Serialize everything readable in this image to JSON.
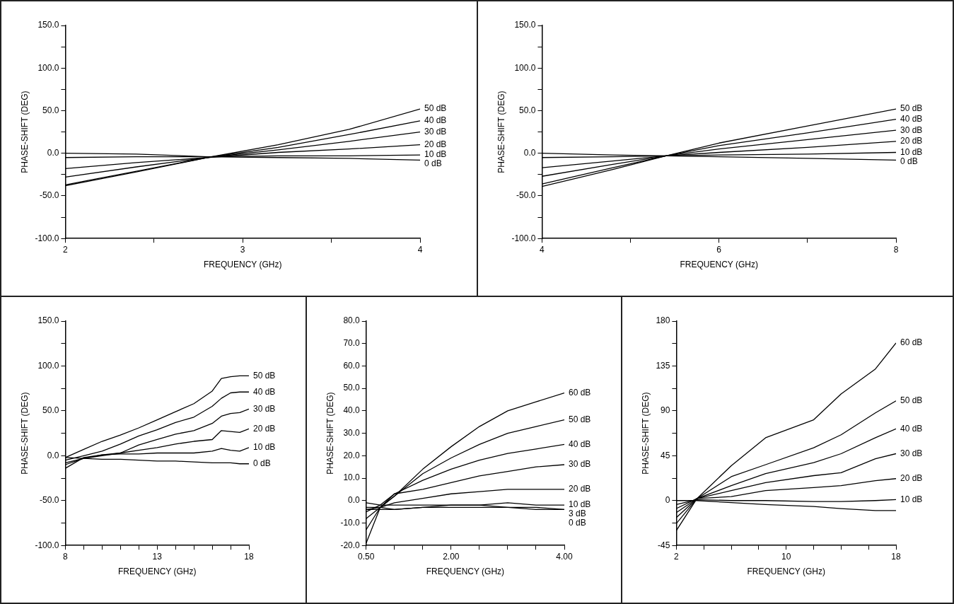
{
  "chart_data": [
    {
      "type": "line",
      "xlabel": "FREQUENCY (GHz)",
      "ylabel": "PHASE-SHIFT (DEG)",
      "marker": "none",
      "legend": false,
      "x": [
        2,
        2.4,
        2.8,
        3.2,
        3.6,
        4
      ],
      "xlim": [
        2,
        4
      ],
      "xticks": [
        2,
        {
          "value": 2.5,
          "label": null
        },
        3,
        {
          "value": 3.5,
          "label": null
        },
        4
      ],
      "ylim": [
        -100,
        150
      ],
      "yticks": [
        {
          "value": -100,
          "label": "-100.0"
        },
        {
          "value": -75,
          "label": null
        },
        {
          "value": -50,
          "label": "-50.0"
        },
        {
          "value": -25,
          "label": null
        },
        {
          "value": 0,
          "label": "0.0"
        },
        {
          "value": 25,
          "label": null
        },
        {
          "value": 50,
          "label": "50.0"
        },
        {
          "value": 75,
          "label": null
        },
        {
          "value": 100,
          "label": "100.0"
        },
        {
          "value": 125,
          "label": null
        },
        {
          "value": 150,
          "label": "150.0"
        }
      ],
      "series": [
        {
          "name": "50 dB",
          "color": "#000000",
          "values": [
            -38,
            -22,
            -5,
            10,
            28,
            52
          ]
        },
        {
          "name": "40 dB",
          "color": "#000000",
          "values": [
            -37,
            -21,
            -5,
            7,
            22,
            38
          ]
        },
        {
          "name": "30 dB",
          "color": "#000000",
          "values": [
            -28,
            -16,
            -5,
            4,
            14,
            25
          ]
        },
        {
          "name": "20 dB",
          "color": "#000000",
          "values": [
            -18,
            -11,
            -5,
            1,
            5,
            10
          ]
        },
        {
          "name": "10 dB",
          "color": "#000000",
          "values": [
            -5,
            -4,
            -4,
            -3,
            -3,
            -2
          ]
        },
        {
          "name": "0 dB",
          "color": "#000000",
          "values": [
            0,
            -1,
            -4,
            -5,
            -6,
            -8
          ]
        }
      ]
    },
    {
      "type": "line",
      "xlabel": "FREQUENCY (GHz)",
      "ylabel": "PHASE-SHIFT (DEG)",
      "marker": "none",
      "legend": false,
      "x": [
        4,
        4.8,
        5.4,
        6,
        7,
        8
      ],
      "xlim": [
        4,
        8
      ],
      "xticks": [
        4,
        {
          "value": 5,
          "label": null
        },
        6,
        {
          "value": 7,
          "label": null
        },
        8
      ],
      "ylim": [
        -100,
        150
      ],
      "yticks": [
        {
          "value": -100,
          "label": "-100.0"
        },
        {
          "value": -75,
          "label": null
        },
        {
          "value": -50,
          "label": "-50.0"
        },
        {
          "value": -25,
          "label": null
        },
        {
          "value": 0,
          "label": "0.0"
        },
        {
          "value": 25,
          "label": null
        },
        {
          "value": 50,
          "label": "50.0"
        },
        {
          "value": 75,
          "label": null
        },
        {
          "value": 100,
          "label": "100.0"
        },
        {
          "value": 125,
          "label": null
        },
        {
          "value": 150,
          "label": "150.0"
        }
      ],
      "series": [
        {
          "name": "50 dB",
          "color": "#000000",
          "values": [
            -39,
            -19,
            -3,
            12,
            32,
            52
          ]
        },
        {
          "name": "40 dB",
          "color": "#000000",
          "values": [
            -36,
            -17,
            -3,
            9,
            24,
            40
          ]
        },
        {
          "name": "30 dB",
          "color": "#000000",
          "values": [
            -27,
            -13,
            -3,
            5,
            16,
            27
          ]
        },
        {
          "name": "20 dB",
          "color": "#000000",
          "values": [
            -17,
            -9,
            -3,
            1,
            7,
            14
          ]
        },
        {
          "name": "10 dB",
          "color": "#000000",
          "values": [
            -5,
            -4,
            -3,
            -2,
            -1,
            1
          ]
        },
        {
          "name": "0 dB",
          "color": "#000000",
          "values": [
            0,
            -2,
            -3,
            -4,
            -6,
            -8
          ]
        }
      ]
    },
    {
      "type": "line",
      "xlabel": "FREQUENCY (GHz)",
      "ylabel": "PHASE-SHIFT (DEG)",
      "marker": "none",
      "legend": false,
      "x": [
        8,
        9,
        10,
        11,
        12,
        13,
        14,
        15,
        16,
        16.5,
        17,
        17.5,
        18
      ],
      "xlim": [
        8,
        18
      ],
      "xticks": [
        8,
        {
          "value": 9,
          "label": null
        },
        {
          "value": 10,
          "label": null
        },
        {
          "value": 11,
          "label": null
        },
        {
          "value": 12,
          "label": null
        },
        13,
        {
          "value": 14,
          "label": null
        },
        {
          "value": 15,
          "label": null
        },
        {
          "value": 16,
          "label": null
        },
        {
          "value": 17,
          "label": null
        },
        18
      ],
      "ylim": [
        -100,
        150
      ],
      "yticks": [
        {
          "value": -100,
          "label": "-100.0"
        },
        {
          "value": -75,
          "label": null
        },
        {
          "value": -50,
          "label": "-50.0"
        },
        {
          "value": -25,
          "label": null
        },
        {
          "value": 0,
          "label": "0.0"
        },
        {
          "value": 25,
          "label": null
        },
        {
          "value": 50,
          "label": "50.0"
        },
        {
          "value": 75,
          "label": null
        },
        {
          "value": 100,
          "label": "100.0"
        },
        {
          "value": 125,
          "label": null
        },
        {
          "value": 150,
          "label": "150.0"
        }
      ],
      "series": [
        {
          "name": "50 dB",
          "color": "#000000",
          "values": [
            -2,
            7,
            16,
            23,
            31,
            40,
            49,
            58,
            72,
            86,
            88,
            89,
            89
          ]
        },
        {
          "name": "40 dB",
          "color": "#000000",
          "values": [
            -5,
            0,
            5,
            13,
            22,
            29,
            37,
            43,
            55,
            64,
            70,
            71,
            71
          ]
        },
        {
          "name": "30 dB",
          "color": "#000000",
          "values": [
            -8,
            -3,
            0,
            3,
            12,
            18,
            24,
            28,
            36,
            44,
            47,
            48,
            52
          ]
        },
        {
          "name": "20 dB",
          "color": "#000000",
          "values": [
            -10,
            -3,
            1,
            3,
            6,
            9,
            13,
            16,
            18,
            28,
            27,
            26,
            30
          ]
        },
        {
          "name": "10 dB",
          "color": "#000000",
          "values": [
            -14,
            -2,
            1,
            2,
            2,
            3,
            3,
            3,
            5,
            8,
            6,
            5,
            9
          ]
        },
        {
          "name": "0 dB",
          "color": "#000000",
          "values": [
            -2,
            -3,
            -4,
            -4,
            -5,
            -6,
            -6,
            -7,
            -8,
            -8,
            -8,
            -9,
            -9
          ]
        }
      ]
    },
    {
      "type": "line",
      "xlabel": "FREQUENCY (GHz)",
      "ylabel": "PHASE-SHIFT (DEG)",
      "marker": "none",
      "legend": false,
      "x": [
        0.5,
        0.75,
        1,
        1.5,
        2,
        2.5,
        3,
        3.5,
        4
      ],
      "xlim": [
        0.5,
        4
      ],
      "xticks": [
        {
          "value": 0.5,
          "label": "0.50"
        },
        {
          "value": 1,
          "label": null
        },
        {
          "value": 1.5,
          "label": null
        },
        {
          "value": 2,
          "label": "2.00"
        },
        {
          "value": 2.5,
          "label": null
        },
        {
          "value": 3,
          "label": null
        },
        {
          "value": 3.5,
          "label": null
        },
        {
          "value": 4,
          "label": "4.00"
        }
      ],
      "ylim": [
        -20,
        80
      ],
      "yticks": [
        {
          "value": -20,
          "label": "-20.0"
        },
        {
          "value": -10,
          "label": "-10.0"
        },
        {
          "value": 0,
          "label": "0.0"
        },
        {
          "value": 10,
          "label": "10.0"
        },
        {
          "value": 20,
          "label": "20.0"
        },
        {
          "value": 30,
          "label": "30.0"
        },
        {
          "value": 40,
          "label": "40.0"
        },
        {
          "value": 50,
          "label": "50.0"
        },
        {
          "value": 60,
          "label": "60.0"
        },
        {
          "value": 70,
          "label": "70.0"
        },
        {
          "value": 80,
          "label": "80.0"
        }
      ],
      "series": [
        {
          "name": "60 dB",
          "color": "#000000",
          "values": [
            -19,
            -3,
            2,
            14,
            24,
            33,
            40,
            44,
            48
          ]
        },
        {
          "name": "50 dB",
          "color": "#000000",
          "values": [
            -13,
            -3,
            2,
            12,
            19,
            25,
            30,
            33,
            36
          ]
        },
        {
          "name": "40 dB",
          "color": "#000000",
          "values": [
            -8,
            -3,
            3,
            9,
            14,
            18,
            21,
            23,
            25
          ]
        },
        {
          "name": "30 dB",
          "color": "#000000",
          "values": [
            -5,
            -2,
            3,
            5,
            8,
            11,
            13,
            15,
            16
          ]
        },
        {
          "name": "20 dB",
          "color": "#000000",
          "values": [
            -4,
            -3,
            -1,
            1,
            3,
            4,
            5,
            5,
            5
          ]
        },
        {
          "name": "10 dB",
          "color": "#000000",
          "values": [
            -1,
            -2,
            -2,
            -2,
            -2,
            -2,
            -1,
            -2,
            -2
          ]
        },
        {
          "name": "3 dB",
          "color": "#000000",
          "values": [
            -3,
            -3,
            -4,
            -3,
            -2,
            -2,
            -3,
            -3,
            -4
          ]
        },
        {
          "name": "0 dB",
          "color": "#000000",
          "values": [
            -4,
            -4,
            -4,
            -3,
            -3,
            -3,
            -3,
            -4,
            -4
          ]
        }
      ]
    },
    {
      "type": "line",
      "xlabel": "FREQUENCY (GHz)",
      "ylabel": "PHASE-SHIFT (DEG)",
      "marker": "none",
      "legend": false,
      "x": [
        2,
        3.5,
        6,
        8.5,
        12,
        14,
        16.5,
        18
      ],
      "xlim": [
        2,
        18
      ],
      "xticks": [
        2,
        {
          "value": 4,
          "label": null
        },
        {
          "value": 6,
          "label": null
        },
        {
          "value": 8,
          "label": null
        },
        10,
        {
          "value": 12,
          "label": null
        },
        {
          "value": 14,
          "label": null
        },
        {
          "value": 16,
          "label": null
        },
        18
      ],
      "ylim": [
        -45,
        180
      ],
      "yticks": [
        -45,
        {
          "value": -22.5,
          "label": null
        },
        0,
        {
          "value": 22.5,
          "label": null
        },
        45,
        {
          "value": 67.5,
          "label": null
        },
        90,
        {
          "value": 112.5,
          "label": null
        },
        135,
        {
          "value": 157.5,
          "label": null
        },
        180
      ],
      "series": [
        {
          "name": "60 dB",
          "color": "#000000",
          "values": [
            -30,
            2,
            35,
            63,
            81,
            107,
            132,
            158
          ]
        },
        {
          "name": "50 dB",
          "color": "#000000",
          "values": [
            -23,
            2,
            24,
            36,
            53,
            66,
            88,
            100
          ]
        },
        {
          "name": "40 dB",
          "color": "#000000",
          "values": [
            -17,
            2,
            15,
            27,
            38,
            47,
            63,
            72
          ]
        },
        {
          "name": "30 dB",
          "color": "#000000",
          "values": [
            -12,
            2,
            10,
            18,
            25,
            28,
            42,
            47
          ]
        },
        {
          "name": "20 dB",
          "color": "#000000",
          "values": [
            -8,
            2,
            4,
            10,
            13,
            15,
            20,
            22
          ]
        },
        {
          "name": "10 dB",
          "color": "#000000",
          "values": [
            -4,
            1,
            0,
            0,
            -1,
            -1,
            0,
            1
          ]
        },
        {
          "color": "#000000",
          "values": [
            0,
            0,
            -2,
            -4,
            -6,
            -8,
            -10,
            -10
          ]
        }
      ]
    }
  ]
}
